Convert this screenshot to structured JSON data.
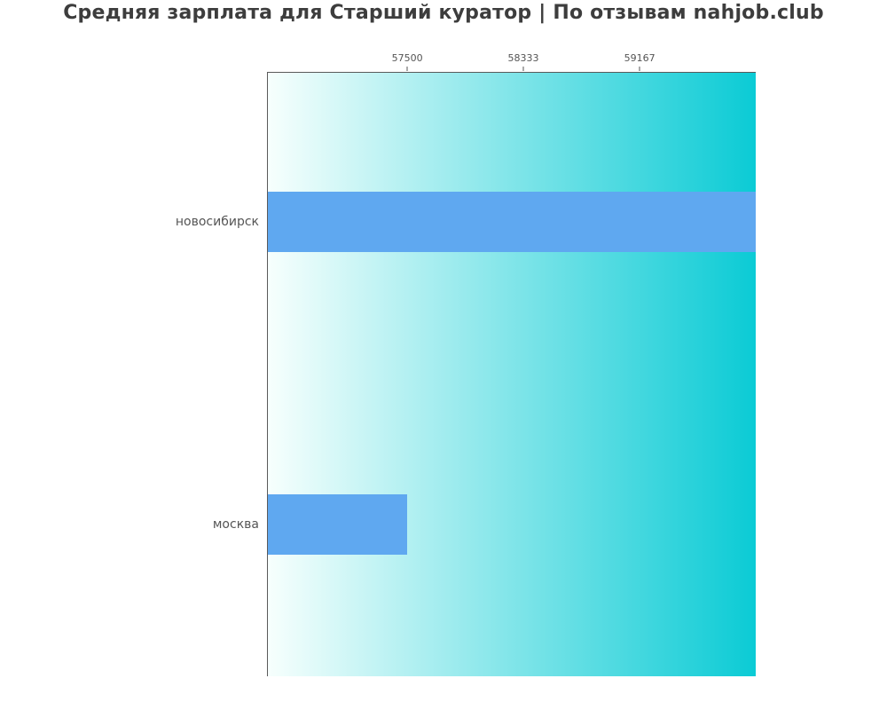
{
  "title": {
    "text": "Средняя зарплата для Старший куратор | По отзывам nahjob.club",
    "color": "#3d3d3d"
  },
  "chart_data": {
    "type": "bar",
    "orientation": "horizontal",
    "title": "Средняя зарплата для Старший куратор | По отзывам nahjob.club",
    "categories": [
      "новосибирск",
      "москва"
    ],
    "values": [
      60000,
      57500
    ],
    "xlabel": "",
    "ylabel": "",
    "xlim": [
      56500,
      60000
    ],
    "x_ticks": [
      57500,
      58333,
      59167
    ],
    "x_tick_labels": [
      "57500",
      "58333",
      "59167"
    ],
    "x_axis_position": "top",
    "grid": false,
    "legend": "none",
    "colors": {
      "bar": "#5fa8f0",
      "bg_gradient_left": "#f7fffd",
      "bg_gradient_right": "#0bcbd5",
      "spine": "#5a5a5a",
      "tick_mark": "#555555",
      "tick_label": "#545454",
      "category_label": "#555555"
    }
  }
}
